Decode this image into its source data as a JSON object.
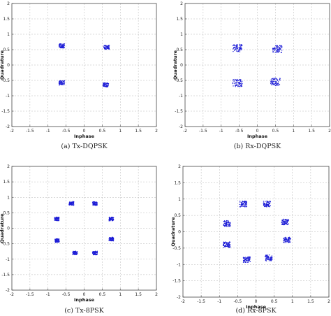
{
  "chart_data": [
    {
      "type": "scatter",
      "caption": "(a) Tx-DQPSK",
      "xlabel": "Inphase",
      "ylabel": "Quadrature",
      "xlim": [
        -2,
        2
      ],
      "ylim": [
        -2,
        2
      ],
      "xticks": [
        "-2",
        "-1.5",
        "-1",
        "-0.5",
        "0",
        "0.5",
        "1",
        "1.5",
        "2"
      ],
      "yticks": [
        "2",
        "1.5",
        "1",
        "0.5",
        "0",
        "-0.5",
        "-1",
        "-1.5",
        "-2"
      ],
      "grid": true,
      "color": "#1d1dd6",
      "clusters": [
        {
          "x": -0.62,
          "y": 0.62,
          "spread": 0.07
        },
        {
          "x": 0.62,
          "y": 0.58,
          "spread": 0.07
        },
        {
          "x": -0.62,
          "y": -0.58,
          "spread": 0.07
        },
        {
          "x": 0.6,
          "y": -0.65,
          "spread": 0.07
        }
      ]
    },
    {
      "type": "scatter",
      "caption": "(b) Rx-DQPSK",
      "xlabel": "Inphase",
      "ylabel": "Quadrature",
      "xlim": [
        -2,
        2
      ],
      "ylim": [
        -2,
        2
      ],
      "xticks": [
        "-2",
        "-1.5",
        "-1",
        "-0.5",
        "0",
        "0.5",
        "1",
        "1.5",
        "2"
      ],
      "yticks": [
        "2",
        "1.5",
        "1",
        "0.5",
        "0",
        "-0.5",
        "-1",
        "-1.5",
        "-2"
      ],
      "grid": true,
      "color": "#1d1dd6",
      "clusters": [
        {
          "x": -0.55,
          "y": 0.55,
          "spread": 0.12
        },
        {
          "x": 0.55,
          "y": 0.52,
          "spread": 0.12
        },
        {
          "x": -0.55,
          "y": -0.58,
          "spread": 0.12
        },
        {
          "x": 0.5,
          "y": -0.55,
          "spread": 0.12
        }
      ]
    },
    {
      "type": "scatter",
      "caption": "(c) Tx-8PSK",
      "xlabel": "Inphase",
      "ylabel": "Quadrature",
      "xlim": [
        -2,
        2
      ],
      "ylim": [
        -2,
        2
      ],
      "xticks": [
        "-2",
        "-1.5",
        "-1",
        "-0.5",
        "0",
        "0.5",
        "1",
        "1.5",
        "2"
      ],
      "yticks": [
        "2",
        "1.5",
        "1",
        "0.5",
        "0",
        "-0.5",
        "-1",
        "-1.5",
        "-2"
      ],
      "grid": true,
      "color": "#1d1dd6",
      "clusters": [
        {
          "x": -0.35,
          "y": 0.8,
          "spread": 0.06
        },
        {
          "x": 0.3,
          "y": 0.8,
          "spread": 0.06
        },
        {
          "x": -0.75,
          "y": 0.3,
          "spread": 0.06
        },
        {
          "x": 0.75,
          "y": 0.3,
          "spread": 0.06
        },
        {
          "x": -0.75,
          "y": -0.4,
          "spread": 0.06
        },
        {
          "x": 0.75,
          "y": -0.35,
          "spread": 0.06
        },
        {
          "x": -0.25,
          "y": -0.8,
          "spread": 0.06
        },
        {
          "x": 0.3,
          "y": -0.8,
          "spread": 0.06
        }
      ]
    },
    {
      "type": "scatter",
      "caption": "(d) Rx-8PSK",
      "xlabel": "Inphase",
      "ylabel": "Quadrature",
      "xlim": [
        -2,
        2
      ],
      "ylim": [
        -2,
        2
      ],
      "xticks": [
        "-2",
        "-1.5",
        "-1",
        "-0.5",
        "0",
        "0.5",
        "1",
        "1.5",
        "2"
      ],
      "yticks": [
        "2",
        "1.5",
        "1",
        "0.5",
        "0",
        "-0.5",
        "-1",
        "-1.5",
        "-2"
      ],
      "grid": true,
      "color": "#1d1dd6",
      "clusters": [
        {
          "x": -0.35,
          "y": 0.85,
          "spread": 0.09
        },
        {
          "x": 0.3,
          "y": 0.85,
          "spread": 0.09
        },
        {
          "x": -0.8,
          "y": 0.25,
          "spread": 0.09
        },
        {
          "x": 0.8,
          "y": 0.3,
          "spread": 0.09
        },
        {
          "x": -0.8,
          "y": -0.4,
          "spread": 0.09
        },
        {
          "x": 0.85,
          "y": -0.25,
          "spread": 0.09
        },
        {
          "x": -0.25,
          "y": -0.85,
          "spread": 0.09
        },
        {
          "x": 0.35,
          "y": -0.8,
          "spread": 0.09
        }
      ]
    }
  ]
}
